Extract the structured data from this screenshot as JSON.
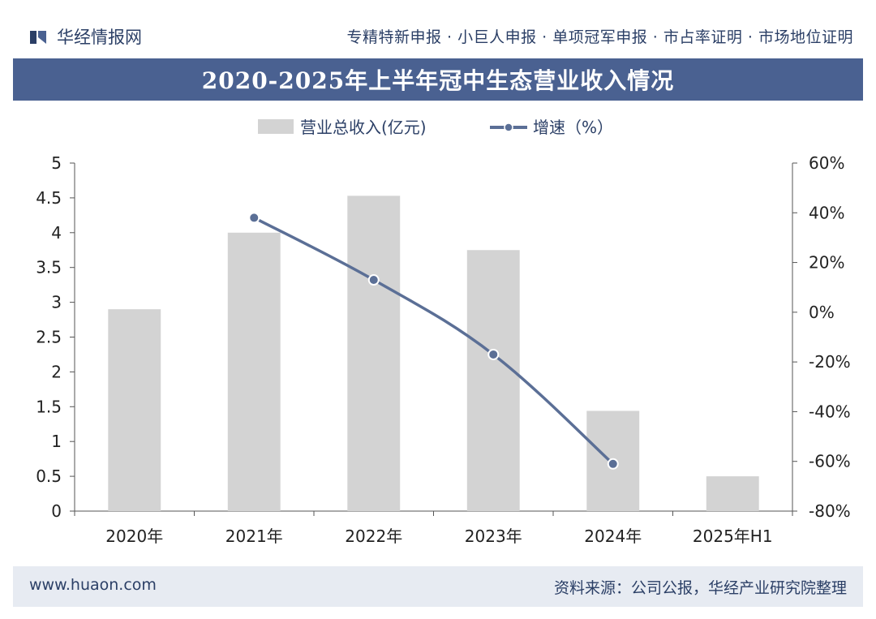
{
  "header": {
    "brand": "华经情报网",
    "tagline": "专精特新申报 · 小巨人申报 · 单项冠军申报 · 市占率证明 · 市场地位证明"
  },
  "title": "2020-2025年上半年冠中生态营业收入情况",
  "colors": {
    "title_bar": "#4a6191",
    "bar": "#d3d3d3",
    "line": "#5b6f96",
    "marker": "#5b6f96",
    "text": "#2b3f66"
  },
  "chart_data": {
    "type": "bar",
    "categories": [
      "2020年",
      "2021年",
      "2022年",
      "2023年",
      "2024年",
      "2025年H1"
    ],
    "series": [
      {
        "name": "营业总收入(亿元)",
        "type": "bar",
        "axis": "left",
        "values": [
          2.9,
          4.0,
          4.53,
          3.75,
          1.44,
          0.5
        ]
      },
      {
        "name": "增速（%）",
        "type": "line",
        "axis": "right",
        "values": [
          null,
          38,
          13,
          -17,
          -61,
          null
        ]
      }
    ],
    "left_axis": {
      "ylim": [
        0,
        5
      ],
      "ticks": [
        "0",
        "0.5",
        "1",
        "1.5",
        "2",
        "2.5",
        "3",
        "3.5",
        "4",
        "4.5",
        "5"
      ]
    },
    "right_axis": {
      "ylim": [
        -80,
        60
      ],
      "ticks": [
        "-80%",
        "-60%",
        "-40%",
        "-20%",
        "0%",
        "20%",
        "40%",
        "60%"
      ]
    },
    "legend_position": "top-center",
    "grid": false
  },
  "footer": {
    "website": "www.huaon.com",
    "source": "资料来源：公司公报，华经产业研究院整理"
  }
}
